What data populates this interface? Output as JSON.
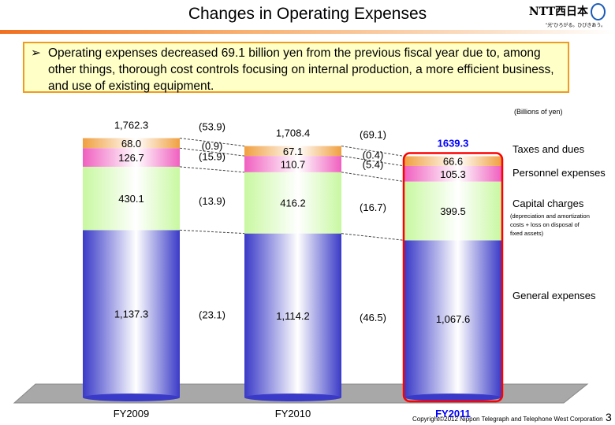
{
  "header": {
    "title": "Changes in Operating Expenses",
    "logo_text": "NTT西日本",
    "logo_tagline": "\"光\"ひろがる。ひびきあう。"
  },
  "summary": {
    "bullet": "➢",
    "text": "Operating expenses decreased 69.1 billion yen from the previous fiscal year due to, among other things, thorough cost controls focusing on internal production, a more efficient business, and use of existing equipment."
  },
  "footer": {
    "copyright": "Copyright©2012 Nippon Telegraph and Telephone West Corporation",
    "page": "3"
  },
  "chart_data": {
    "type": "bar",
    "stacked": true,
    "unit": "(Billions of yen)",
    "categories": [
      "FY2009",
      "FY2010",
      "FY2011"
    ],
    "totals": [
      "1,762.3",
      "1,708.4",
      "1639.3"
    ],
    "series": [
      {
        "name": "General expenses",
        "values": [
          1137.3,
          1114.2,
          1067.6
        ],
        "labels": [
          "1,137.3",
          "1,114.2",
          "1,067.6"
        ],
        "color": "#3a3ac8"
      },
      {
        "name": "Capital charges",
        "sublabel": "(depreciation and amortization costs + loss on disposal of fixed assets)",
        "values": [
          430.1,
          416.2,
          399.5
        ],
        "labels": [
          "430.1",
          "416.2",
          "399.5"
        ],
        "color": "#c8f8a0"
      },
      {
        "name": "Personnel expenses",
        "values": [
          126.7,
          110.7,
          105.3
        ],
        "labels": [
          "126.7",
          "110.7",
          "105.3"
        ],
        "color": "#f060c0"
      },
      {
        "name": "Taxes and dues",
        "values": [
          68.0,
          67.1,
          66.6
        ],
        "labels": [
          "68.0",
          "67.1",
          "66.6"
        ],
        "color": "#f0a040"
      }
    ],
    "changes": [
      {
        "total": "(53.9)",
        "general": "(23.1)",
        "capital": "(13.9)",
        "personnel": "(15.9)",
        "taxes": "(0.9)"
      },
      {
        "total": "(69.1)",
        "general": "(46.5)",
        "capital": "(16.7)",
        "personnel": "(5.4)",
        "taxes": "(0.4)"
      }
    ],
    "highlight": "FY2011",
    "highlight_color": "#ff0000",
    "total_highlight_color": "#0000ff"
  }
}
